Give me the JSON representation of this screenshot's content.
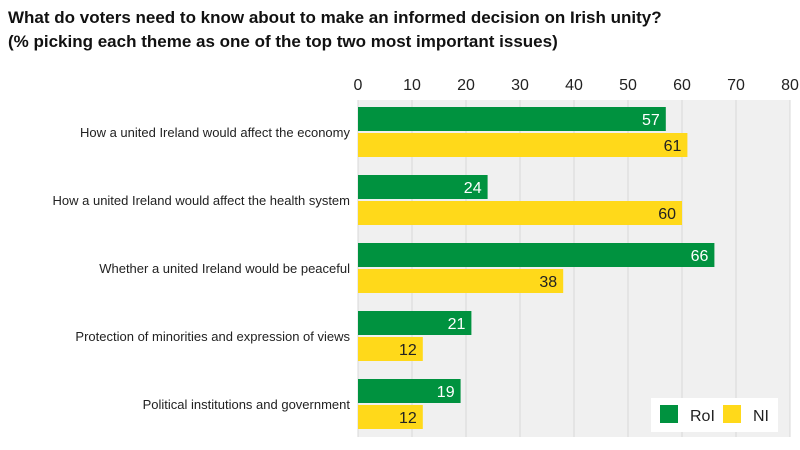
{
  "chart_data": {
    "type": "bar",
    "orientation": "horizontal",
    "title": "What do voters need to know about to make an informed decision on Irish unity?",
    "subtitle": "(% picking each theme as one of the top two most important issues)",
    "categories": [
      "How a united Ireland would affect the economy",
      "How a united Ireland would affect the health system",
      "Whether a united Ireland would be peaceful",
      "Protection of minorities and expression of views",
      "Political institutions and government"
    ],
    "series": [
      {
        "name": "RoI",
        "color": "#00923f",
        "values": [
          57,
          24,
          66,
          21,
          19
        ]
      },
      {
        "name": "NI",
        "color": "#ffd91a",
        "values": [
          61,
          60,
          38,
          12,
          12
        ]
      }
    ],
    "xlim": [
      0,
      80
    ],
    "xticks": [
      0,
      10,
      20,
      30,
      40,
      50,
      60,
      70,
      80
    ],
    "grid": true,
    "legend_position": "bottom-right",
    "data_labels": true
  }
}
